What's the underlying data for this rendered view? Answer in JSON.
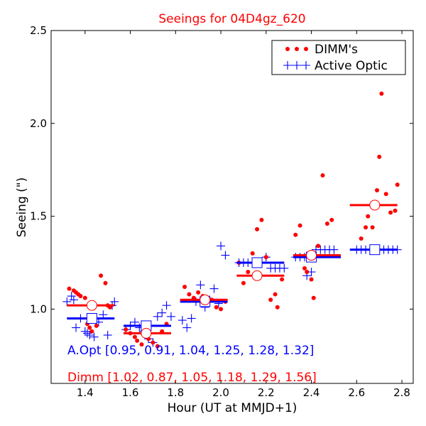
{
  "chart_data": {
    "type": "scatter",
    "title": "Seeings for 04D4gz_620",
    "xlabel": "Hour (UT at MMJD+1)",
    "ylabel": "Seeing (\")",
    "xlim": [
      1.25,
      2.85
    ],
    "ylim": [
      0.6,
      2.5
    ],
    "xticks": [
      "1.4",
      "1.6",
      "1.8",
      "2.0",
      "2.2",
      "2.4",
      "2.6",
      "2.8"
    ],
    "yticks": [
      "1.0",
      "1.5",
      "2.0",
      "2.5"
    ],
    "legend": {
      "position": "top-right",
      "entries": [
        "DIMM's",
        "Active Optic"
      ]
    },
    "colors": {
      "dimm": "#ff0000",
      "active_optic": "#0000ff"
    },
    "annotations": {
      "aopt": "A.Opt [0.95, 0.91, 1.04, 1.25, 1.28, 1.32]",
      "dimm": "Dimm [1.02, 0.87, 1.05, 1.18, 1.29, 1.56]"
    },
    "series": [
      {
        "name": "DIMM's",
        "marker": "dot",
        "points": [
          [
            1.33,
            1.11
          ],
          [
            1.35,
            1.1
          ],
          [
            1.36,
            1.09
          ],
          [
            1.37,
            1.08
          ],
          [
            1.38,
            1.07
          ],
          [
            1.4,
            1.06
          ],
          [
            1.41,
            0.92
          ],
          [
            1.42,
            0.9
          ],
          [
            1.43,
            0.88
          ],
          [
            1.45,
            0.91
          ],
          [
            1.47,
            1.18
          ],
          [
            1.49,
            1.14
          ],
          [
            1.5,
            1.02
          ],
          [
            1.51,
            1.01
          ],
          [
            1.58,
            0.89
          ],
          [
            1.6,
            0.87
          ],
          [
            1.62,
            0.85
          ],
          [
            1.63,
            0.83
          ],
          [
            1.65,
            0.81
          ],
          [
            1.66,
            0.86
          ],
          [
            1.68,
            0.84
          ],
          [
            1.7,
            0.82
          ],
          [
            1.72,
            0.8
          ],
          [
            1.74,
            0.88
          ],
          [
            1.76,
            0.92
          ],
          [
            1.84,
            1.12
          ],
          [
            1.86,
            1.08
          ],
          [
            1.88,
            1.06
          ],
          [
            1.9,
            1.09
          ],
          [
            1.92,
            1.07
          ],
          [
            1.94,
            1.03
          ],
          [
            1.96,
            1.05
          ],
          [
            1.98,
            1.01
          ],
          [
            2.0,
            1.0
          ],
          [
            2.02,
            1.04
          ],
          [
            2.08,
            1.25
          ],
          [
            2.1,
            1.14
          ],
          [
            2.12,
            1.2
          ],
          [
            2.14,
            1.3
          ],
          [
            2.16,
            1.43
          ],
          [
            2.18,
            1.48
          ],
          [
            2.2,
            1.28
          ],
          [
            2.22,
            1.05
          ],
          [
            2.24,
            1.08
          ],
          [
            2.25,
            1.01
          ],
          [
            2.27,
            1.16
          ],
          [
            2.33,
            1.4
          ],
          [
            2.35,
            1.45
          ],
          [
            2.37,
            1.22
          ],
          [
            2.38,
            1.2
          ],
          [
            2.4,
            1.16
          ],
          [
            2.41,
            1.06
          ],
          [
            2.43,
            1.34
          ],
          [
            2.45,
            1.72
          ],
          [
            2.47,
            1.46
          ],
          [
            2.49,
            1.48
          ],
          [
            2.62,
            1.38
          ],
          [
            2.64,
            1.44
          ],
          [
            2.65,
            1.5
          ],
          [
            2.67,
            1.44
          ],
          [
            2.69,
            1.64
          ],
          [
            2.7,
            1.82
          ],
          [
            2.71,
            2.16
          ],
          [
            2.73,
            1.62
          ],
          [
            2.75,
            1.52
          ],
          [
            2.77,
            1.53
          ],
          [
            2.78,
            1.67
          ]
        ]
      },
      {
        "name": "Active Optic",
        "marker": "plus",
        "points": [
          [
            1.32,
            1.04
          ],
          [
            1.34,
            1.07
          ],
          [
            1.35,
            1.05
          ],
          [
            1.36,
            0.9
          ],
          [
            1.38,
            0.95
          ],
          [
            1.4,
            0.88
          ],
          [
            1.41,
            0.87
          ],
          [
            1.42,
            0.86
          ],
          [
            1.44,
            0.85
          ],
          [
            1.46,
            0.93
          ],
          [
            1.48,
            0.97
          ],
          [
            1.5,
            0.86
          ],
          [
            1.52,
            1.02
          ],
          [
            1.53,
            1.04
          ],
          [
            1.58,
            0.89
          ],
          [
            1.6,
            0.91
          ],
          [
            1.62,
            0.93
          ],
          [
            1.64,
            0.9
          ],
          [
            1.66,
            0.88
          ],
          [
            1.68,
            0.84
          ],
          [
            1.7,
            0.82
          ],
          [
            1.72,
            0.96
          ],
          [
            1.74,
            0.98
          ],
          [
            1.76,
            1.02
          ],
          [
            1.78,
            0.96
          ],
          [
            1.83,
            0.94
          ],
          [
            1.85,
            0.9
          ],
          [
            1.87,
            0.95
          ],
          [
            1.89,
            1.04
          ],
          [
            1.91,
            1.13
          ],
          [
            1.93,
            1.01
          ],
          [
            1.95,
            1.05
          ],
          [
            1.97,
            1.11
          ],
          [
            1.99,
            1.03
          ],
          [
            2.0,
            1.34
          ],
          [
            2.02,
            1.29
          ],
          [
            2.08,
            1.25
          ],
          [
            2.1,
            1.25
          ],
          [
            2.12,
            1.25
          ],
          [
            2.14,
            1.25
          ],
          [
            2.16,
            1.25
          ],
          [
            2.18,
            1.25
          ],
          [
            2.2,
            1.28
          ],
          [
            2.22,
            1.22
          ],
          [
            2.24,
            1.22
          ],
          [
            2.26,
            1.22
          ],
          [
            2.28,
            1.22
          ],
          [
            2.33,
            1.28
          ],
          [
            2.35,
            1.28
          ],
          [
            2.37,
            1.28
          ],
          [
            2.38,
            1.18
          ],
          [
            2.4,
            1.2
          ],
          [
            2.42,
            1.32
          ],
          [
            2.44,
            1.32
          ],
          [
            2.46,
            1.32
          ],
          [
            2.48,
            1.32
          ],
          [
            2.5,
            1.32
          ],
          [
            2.6,
            1.32
          ],
          [
            2.62,
            1.32
          ],
          [
            2.64,
            1.32
          ],
          [
            2.66,
            1.32
          ],
          [
            2.68,
            1.32
          ],
          [
            2.7,
            1.32
          ],
          [
            2.72,
            1.32
          ],
          [
            2.74,
            1.32
          ],
          [
            2.76,
            1.32
          ],
          [
            2.78,
            1.32
          ]
        ]
      }
    ],
    "bins": [
      {
        "x": [
          1.32,
          1.53
        ],
        "center": 1.43,
        "aopt": 0.95,
        "dimm": 1.02
      },
      {
        "x": [
          1.57,
          1.78
        ],
        "center": 1.67,
        "aopt": 0.91,
        "dimm": 0.87
      },
      {
        "x": [
          1.82,
          2.03
        ],
        "center": 1.93,
        "aopt": 1.04,
        "dimm": 1.05
      },
      {
        "x": [
          2.07,
          2.28
        ],
        "center": 2.16,
        "aopt": 1.25,
        "dimm": 1.18
      },
      {
        "x": [
          2.32,
          2.53
        ],
        "center": 2.4,
        "aopt": 1.28,
        "dimm": 1.29
      },
      {
        "x": [
          2.57,
          2.78
        ],
        "center": 2.68,
        "aopt": 1.32,
        "dimm": 1.56
      }
    ]
  }
}
